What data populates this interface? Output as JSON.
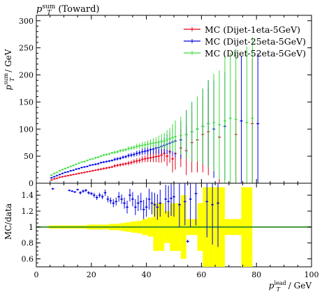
{
  "chart_data": [
    {
      "type": "scatter",
      "panel": "main",
      "title": "p_T^sum (Toward)",
      "title_parts": {
        "base": "p",
        "sub": "T",
        "sup": "sum",
        "rest": " (Toward)"
      },
      "ylabel": "p_T^sum / GeV",
      "ylabel_parts": {
        "base": "p",
        "sub": "T",
        "sup": "sum",
        "rest": " / GeV"
      },
      "xlim": [
        0,
        100
      ],
      "ylim": [
        0,
        310
      ],
      "yticks": [
        0,
        50,
        100,
        150,
        200,
        250,
        300
      ],
      "legend_position": "top-right",
      "series": [
        {
          "name": "MC (Dijet-1eta-5GeV)",
          "color": "#e8001c",
          "x": [
            5.5,
            6.5,
            7.5,
            8.5,
            9.5,
            10.5,
            11.5,
            12.5,
            13.5,
            14.5,
            15.5,
            16.5,
            17.5,
            18.5,
            19.5,
            20.5,
            21.5,
            22.5,
            23.5,
            24.5,
            25.5,
            26.5,
            27.5,
            28.5,
            29.5,
            30.5,
            31.5,
            32.5,
            33.5,
            34.5,
            35.5,
            36.5,
            37.5,
            38.5,
            39.5,
            40.5,
            41.5,
            42.5,
            43.5,
            44.5,
            45.5,
            46.5,
            47.5,
            48.5,
            49.5,
            50.5,
            52.5,
            54.5,
            56.5,
            58.5,
            60.5,
            62.5,
            66.5,
            72.5,
            78.5
          ],
          "y": [
            6,
            8,
            9,
            11,
            12,
            13,
            14,
            15,
            16,
            17,
            18,
            19,
            20,
            21,
            22,
            23,
            24,
            25,
            26,
            27,
            28,
            29,
            30,
            32,
            33,
            34,
            35,
            36,
            37,
            38,
            40,
            41,
            42,
            44,
            45,
            46,
            47,
            48,
            49,
            50,
            52,
            55,
            50,
            58,
            45,
            55,
            65,
            60,
            75,
            80,
            90,
            95,
            85,
            90,
            110
          ],
          "err": [
            1,
            1,
            1,
            1,
            1,
            1,
            1,
            1,
            1,
            1,
            1,
            1,
            1,
            1,
            1,
            1,
            1,
            2,
            2,
            2,
            2,
            2,
            2,
            3,
            3,
            3,
            3,
            3,
            4,
            4,
            4,
            5,
            5,
            6,
            6,
            7,
            8,
            9,
            10,
            12,
            14,
            15,
            18,
            20,
            25,
            30,
            35,
            45,
            55,
            60,
            70,
            80,
            90,
            100,
            120
          ]
        },
        {
          "name": "MC (Dijet-25eta-5GeV)",
          "color": "#0000e8",
          "x": [
            5.5,
            6.5,
            7.5,
            8.5,
            9.5,
            10.5,
            11.5,
            12.5,
            13.5,
            14.5,
            15.5,
            16.5,
            17.5,
            18.5,
            19.5,
            20.5,
            21.5,
            22.5,
            23.5,
            24.5,
            25.5,
            26.5,
            27.5,
            28.5,
            29.5,
            30.5,
            31.5,
            32.5,
            33.5,
            34.5,
            35.5,
            36.5,
            37.5,
            38.5,
            39.5,
            40.5,
            41.5,
            42.5,
            43.5,
            44.5,
            45.5,
            46.5,
            47.5,
            48.5,
            49.5,
            50.5,
            52.5,
            54.5,
            56.5,
            58.5,
            60.5,
            62.5,
            64.5,
            68.5,
            74.5,
            80.5
          ],
          "y": [
            10,
            12,
            14,
            16,
            18,
            20,
            21,
            23,
            24,
            26,
            27,
            29,
            30,
            31,
            33,
            34,
            35,
            36,
            38,
            39,
            40,
            41,
            42,
            44,
            45,
            46,
            48,
            49,
            51,
            52,
            53,
            55,
            56,
            58,
            59,
            60,
            62,
            63,
            65,
            66,
            68,
            70,
            72,
            74,
            76,
            78,
            80,
            90,
            95,
            100,
            105,
            110,
            100,
            105,
            115,
            110
          ],
          "err": [
            1,
            1,
            1,
            1,
            1,
            1,
            1,
            1,
            1,
            1,
            1,
            1,
            1,
            1,
            1,
            1,
            2,
            2,
            2,
            2,
            2,
            2,
            2,
            3,
            3,
            3,
            3,
            3,
            4,
            4,
            4,
            5,
            5,
            6,
            6,
            7,
            8,
            9,
            10,
            12,
            14,
            15,
            18,
            20,
            25,
            30,
            35,
            45,
            55,
            60,
            70,
            80,
            90,
            100,
            120,
            130
          ]
        },
        {
          "name": "MC (Dijet-52eta-5GeV)",
          "color": "#3cdc3c",
          "x": [
            5.5,
            6.5,
            7.5,
            8.5,
            9.5,
            10.5,
            11.5,
            12.5,
            13.5,
            14.5,
            15.5,
            16.5,
            17.5,
            18.5,
            19.5,
            20.5,
            21.5,
            22.5,
            23.5,
            24.5,
            25.5,
            26.5,
            27.5,
            28.5,
            29.5,
            30.5,
            31.5,
            32.5,
            33.5,
            34.5,
            35.5,
            36.5,
            37.5,
            38.5,
            39.5,
            40.5,
            41.5,
            42.5,
            43.5,
            44.5,
            45.5,
            46.5,
            47.5,
            48.5,
            49.5,
            50.5,
            52.5,
            54.5,
            56.5,
            58.5,
            60.5,
            62.5,
            64.5,
            66.5,
            68.5,
            70.5,
            72.5,
            76.5,
            78.5
          ],
          "y": [
            15,
            18,
            20,
            23,
            25,
            27,
            29,
            31,
            33,
            35,
            37,
            39,
            40,
            42,
            44,
            45,
            47,
            48,
            50,
            52,
            53,
            54,
            56,
            57,
            58,
            60,
            61,
            62,
            64,
            65,
            66,
            68,
            69,
            70,
            71,
            72,
            73,
            74,
            75,
            76,
            77,
            78,
            80,
            82,
            84,
            86,
            88,
            90,
            95,
            100,
            105,
            110,
            112,
            108,
            115,
            120,
            118,
            112,
            120
          ],
          "err": [
            1,
            1,
            1,
            1,
            1,
            1,
            1,
            1,
            1,
            1,
            1,
            1,
            1,
            1,
            1,
            1,
            2,
            2,
            2,
            2,
            2,
            2,
            2,
            3,
            3,
            3,
            3,
            3,
            4,
            4,
            4,
            5,
            5,
            6,
            6,
            7,
            8,
            9,
            10,
            12,
            14,
            15,
            18,
            20,
            25,
            30,
            35,
            45,
            55,
            60,
            70,
            80,
            90,
            100,
            120,
            120,
            130,
            140,
            150
          ]
        }
      ],
      "legend": [
        {
          "label": "MC (Dijet-1eta-5GeV)",
          "color": "#e8001c"
        },
        {
          "label": "MC (Dijet-25eta-5GeV)",
          "color": "#0000e8"
        },
        {
          "label": "MC (Dijet-52eta-5GeV)",
          "color": "#3cdc3c"
        }
      ]
    },
    {
      "type": "scatter",
      "panel": "ratio",
      "ylabel": "MC/data",
      "xlabel": "p_T^lead / GeV",
      "xlabel_parts": {
        "base": "p",
        "sub": "T",
        "sup": "lead",
        "rest": " / GeV"
      },
      "xlim": [
        0,
        100
      ],
      "ylim": [
        0.5,
        1.55
      ],
      "yticks": [
        "0.6",
        "0.8",
        "1",
        "1.2",
        "1.4"
      ],
      "xticks": [
        "0",
        "20",
        "40",
        "60",
        "80",
        "100"
      ],
      "reference_line": 1,
      "reference_color": "#2e8b22",
      "data_band_color": "#ffff00",
      "band": {
        "x": [
          5.5,
          7.5,
          9.5,
          11.5,
          13.5,
          15.5,
          17.5,
          19.5,
          21.5,
          23.5,
          25.5,
          27.5,
          29.5,
          31.5,
          33.5,
          35.5,
          37.5,
          39.5,
          41.5,
          43.5,
          45.5,
          47.5,
          49.5,
          51.5,
          53.5,
          55.5,
          57.5,
          59.5,
          61.5,
          63.5,
          65.5,
          67.5,
          69.5,
          71.5,
          73.5,
          75.5,
          77.5
        ],
        "half_width": [
          0.02,
          0.02,
          0.02,
          0.02,
          0.02,
          0.02,
          0.02,
          0.03,
          0.03,
          0.03,
          0.03,
          0.04,
          0.04,
          0.05,
          0.06,
          0.07,
          0.08,
          0.1,
          0.12,
          0.3,
          0.3,
          0.2,
          0.3,
          0.3,
          0.4,
          0.1,
          0.1,
          0.3,
          0.5,
          0.5,
          0.5,
          0.5,
          0.1,
          0.1,
          0.1,
          0.5,
          0.5
        ]
      },
      "series": [
        {
          "name": "MC (Dijet-1eta-5GeV)",
          "color": "#e8001c",
          "x": [],
          "y": [],
          "err": []
        },
        {
          "name": "MC (Dijet-25eta-5GeV)",
          "color": "#0000e8",
          "x": [
            6,
            12,
            13,
            14,
            15,
            16,
            17,
            18,
            19,
            20,
            21,
            22,
            23,
            24,
            25,
            26,
            27,
            28,
            29,
            30,
            31,
            32,
            33,
            34,
            35,
            36,
            37,
            38,
            39,
            40,
            41,
            42,
            43,
            44,
            45,
            47,
            48,
            49,
            50,
            52,
            54,
            55,
            56,
            58,
            62,
            64,
            66
          ],
          "y": [
            1.48,
            1.46,
            1.45,
            1.44,
            1.47,
            1.43,
            1.45,
            1.46,
            1.43,
            1.42,
            1.4,
            1.37,
            1.4,
            1.38,
            1.43,
            1.35,
            1.33,
            1.3,
            1.32,
            1.38,
            1.35,
            1.3,
            1.25,
            1.4,
            1.35,
            1.25,
            1.3,
            1.32,
            1.22,
            1.25,
            1.35,
            1.3,
            1.28,
            1.25,
            1.3,
            1.35,
            1.32,
            1.36,
            1.38,
            1.28,
            1.32,
            0.82,
            1.35,
            1.42,
            1.32,
            1.28,
            1.3
          ],
          "err": [
            0.01,
            0.01,
            0.01,
            0.01,
            0.01,
            0.02,
            0.02,
            0.02,
            0.02,
            0.02,
            0.03,
            0.03,
            0.03,
            0.03,
            0.04,
            0.04,
            0.04,
            0.05,
            0.05,
            0.06,
            0.06,
            0.07,
            0.08,
            0.08,
            0.09,
            0.1,
            0.1,
            0.11,
            0.12,
            0.12,
            0.13,
            0.14,
            0.15,
            0.16,
            0.17,
            0.18,
            0.2,
            0.22,
            0.25,
            0.28,
            0.3,
            0.02,
            0.35,
            0.4,
            0.45,
            0.5,
            0.55
          ]
        },
        {
          "name": "MC (Dijet-52eta-5GeV)",
          "color": "#3cdc3c",
          "x": [],
          "y": [],
          "err": []
        }
      ]
    }
  ]
}
